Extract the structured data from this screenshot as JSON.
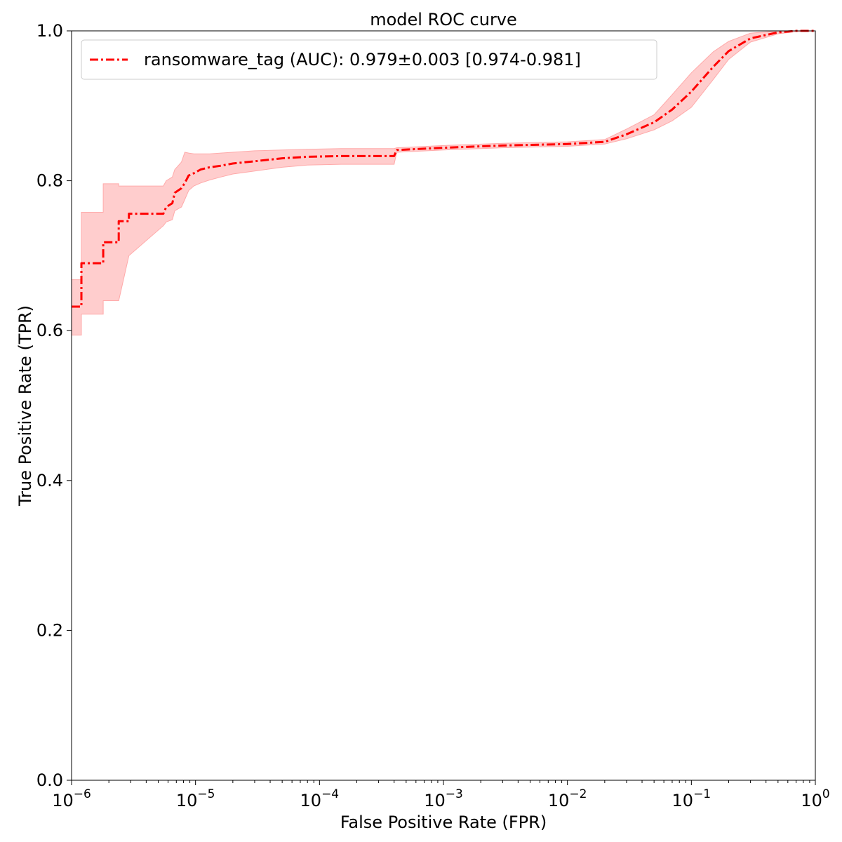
{
  "chart_data": {
    "type": "line",
    "title": "model ROC curve",
    "xlabel": "False Positive Rate (FPR)",
    "ylabel": "True Positive Rate (TPR)",
    "xscale": "log",
    "xlim": [
      1e-06,
      1
    ],
    "ylim": [
      0.0,
      1.0
    ],
    "grid": false,
    "legend_position": "top-left",
    "x_ticks": [
      {
        "base": "10",
        "exp": "−6"
      },
      {
        "base": "10",
        "exp": "−5"
      },
      {
        "base": "10",
        "exp": "−4"
      },
      {
        "base": "10",
        "exp": "−3"
      },
      {
        "base": "10",
        "exp": "−2"
      },
      {
        "base": "10",
        "exp": "−1"
      },
      {
        "base": "10",
        "exp": "0"
      }
    ],
    "y_ticks": [
      "0.0",
      "0.2",
      "0.4",
      "0.6",
      "0.8",
      "1.0"
    ],
    "series": [
      {
        "name": "ransomware_tag (AUC): 0.979±0.003 [0.974-0.981]",
        "color": "#ff0000",
        "band_color": "#ffc8c8",
        "line_style": "dash-dot",
        "x": [
          1e-06,
          1.2e-06,
          1.2e-06,
          1.8e-06,
          1.8e-06,
          2.4e-06,
          2.4e-06,
          2.9e-06,
          2.9e-06,
          5.5e-06,
          5.8e-06,
          6.5e-06,
          6.8e-06,
          7.7e-06,
          8.2e-06,
          8.8e-06,
          9.7e-06,
          1.1e-05,
          1.3e-05,
          1.6e-05,
          2e-05,
          3e-05,
          5e-05,
          8e-05,
          0.00015,
          0.0003,
          0.0004,
          0.00042,
          0.001,
          0.003,
          0.01,
          0.02,
          0.03,
          0.05,
          0.07,
          0.1,
          0.15,
          0.2,
          0.3,
          0.5,
          0.7,
          1.0
        ],
        "y": [
          0.632,
          0.632,
          0.69,
          0.69,
          0.718,
          0.718,
          0.746,
          0.746,
          0.756,
          0.756,
          0.765,
          0.77,
          0.784,
          0.79,
          0.797,
          0.807,
          0.81,
          0.815,
          0.818,
          0.82,
          0.823,
          0.826,
          0.83,
          0.832,
          0.833,
          0.833,
          0.833,
          0.841,
          0.844,
          0.847,
          0.849,
          0.852,
          0.862,
          0.878,
          0.895,
          0.919,
          0.952,
          0.973,
          0.99,
          0.998,
          1.0,
          1.0
        ],
        "lower": [
          0.594,
          0.594,
          0.622,
          0.622,
          0.64,
          0.64,
          0.64,
          0.7,
          0.7,
          0.74,
          0.745,
          0.748,
          0.76,
          0.765,
          0.775,
          0.787,
          0.793,
          0.797,
          0.801,
          0.805,
          0.809,
          0.813,
          0.818,
          0.821,
          0.822,
          0.822,
          0.822,
          0.838,
          0.841,
          0.844,
          0.846,
          0.849,
          0.856,
          0.868,
          0.88,
          0.898,
          0.935,
          0.962,
          0.985,
          0.996,
          0.999,
          1.0
        ],
        "upper": [
          0.668,
          0.668,
          0.758,
          0.758,
          0.796,
          0.796,
          0.793,
          0.793,
          0.793,
          0.793,
          0.8,
          0.805,
          0.815,
          0.825,
          0.838,
          0.837,
          0.836,
          0.836,
          0.836,
          0.837,
          0.838,
          0.84,
          0.841,
          0.842,
          0.843,
          0.843,
          0.843,
          0.844,
          0.847,
          0.85,
          0.852,
          0.855,
          0.869,
          0.888,
          0.915,
          0.944,
          0.972,
          0.986,
          0.997,
          1.0,
          1.0,
          1.0
        ]
      }
    ]
  }
}
